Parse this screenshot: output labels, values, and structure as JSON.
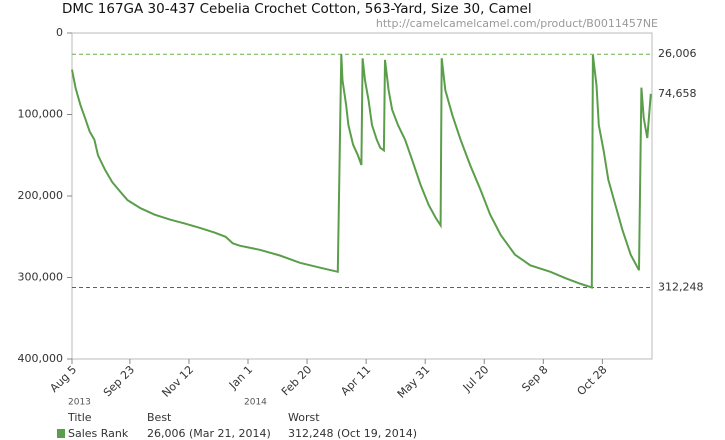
{
  "chart_data": {
    "type": "line",
    "title": "DMC 167GA 30-437 Cebelia Crochet Cotton, 563-Yard, Size 30, Camel",
    "subtitle": "http://camelcamelcamel.com/product/B0011457NE",
    "y_inverted": true,
    "xlim": [
      0,
      491
    ],
    "xticks": [
      {
        "value": 0,
        "label": "Aug 5"
      },
      {
        "value": 49,
        "label": "Sep 23"
      },
      {
        "value": 99,
        "label": "Nov 12"
      },
      {
        "value": 149,
        "label": "Jan 1"
      },
      {
        "value": 199,
        "label": "Feb 20"
      },
      {
        "value": 249,
        "label": "Apr 11"
      },
      {
        "value": 299,
        "label": "May 31"
      },
      {
        "value": 349,
        "label": "Jul 20"
      },
      {
        "value": 399,
        "label": "Sep 8"
      },
      {
        "value": 449,
        "label": "Oct 28"
      }
    ],
    "year_labels": [
      {
        "value": 0,
        "label": "2013"
      },
      {
        "value": 149,
        "label": "2014"
      }
    ],
    "ylim": [
      0,
      400000
    ],
    "yticks": [
      0,
      {
        "value": 100000,
        "label": "100,000"
      },
      {
        "value": 200000,
        "label": "200,000"
      },
      {
        "value": 300000,
        "label": "300,000"
      },
      {
        "value": 400000,
        "label": "400,000"
      }
    ],
    "reference_lines": [
      {
        "value": 26006,
        "label": "26,006",
        "color": "#6ab04c",
        "line": true
      },
      {
        "value": 312248,
        "label": "312,248",
        "color": "#c0392b",
        "line": true
      },
      {
        "value": 74658,
        "label": "74,658",
        "color": "#5a8f3c",
        "line": false
      }
    ],
    "series": [
      {
        "name": "Sales Rank",
        "color": "#5a9e4a",
        "x": [
          0,
          3,
          7,
          11,
          15,
          19,
          22,
          28,
          34,
          41,
          47,
          58,
          70,
          83,
          96,
          108,
          121,
          130,
          136,
          142,
          159,
          176,
          193,
          210,
          225,
          228,
          229,
          232,
          234,
          238,
          242,
          245,
          246,
          248,
          251,
          254,
          258,
          261,
          264,
          265,
          268,
          271,
          276,
          282,
          288,
          295,
          302,
          308,
          312,
          313,
          316,
          322,
          329,
          337,
          346,
          354,
          363,
          375,
          388,
          405,
          418,
          431,
          440,
          441,
          444,
          446,
          450,
          454,
          460,
          466,
          473,
          480,
          482,
          484,
          487,
          490
        ],
        "values": [
          45000,
          67000,
          88000,
          104000,
          121000,
          131000,
          150000,
          168000,
          183000,
          195000,
          205000,
          215000,
          223000,
          229000,
          234000,
          239000,
          245000,
          250000,
          258000,
          261000,
          266000,
          273000,
          282000,
          288000,
          293000,
          26006,
          58000,
          88000,
          113000,
          137000,
          150000,
          162000,
          31000,
          58000,
          82000,
          113000,
          131000,
          141000,
          144000,
          33000,
          70000,
          94000,
          113000,
          131000,
          156000,
          186000,
          211000,
          227000,
          236000,
          31000,
          70000,
          101000,
          131000,
          162000,
          193000,
          223000,
          248000,
          272000,
          285000,
          293000,
          301000,
          308000,
          312248,
          27000,
          64000,
          113000,
          144000,
          180000,
          211000,
          242000,
          272000,
          291000,
          67000,
          104000,
          129000,
          74658
        ]
      }
    ],
    "summary_table": {
      "columns": [
        "Title",
        "Best",
        "Worst"
      ],
      "best": "26,006 (Mar 21, 2014)",
      "worst": "312,248 (Oct 19, 2014)"
    }
  }
}
